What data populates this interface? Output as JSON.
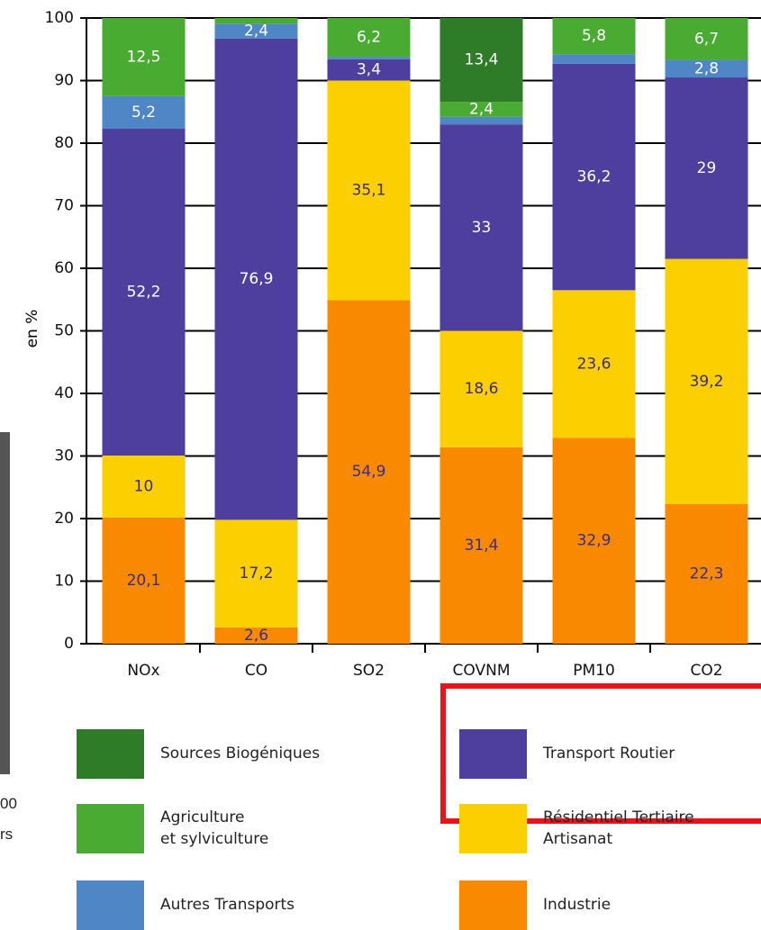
{
  "chart_data": {
    "type": "stacked-bar",
    "y_label": "en %",
    "categories": [
      "NOx",
      "CO",
      "SO2",
      "COVNM",
      "PM10",
      "CO2"
    ],
    "ylim": [
      0,
      100
    ],
    "yticks": [
      0,
      10,
      20,
      30,
      40,
      50,
      60,
      70,
      80,
      90,
      100
    ],
    "grid": true,
    "series": [
      {
        "name": "Industrie",
        "color": "#f98a00",
        "label_color": "#3b2a8c",
        "values": [
          20.1,
          2.6,
          54.9,
          31.4,
          32.9,
          22.3
        ],
        "value_labels": [
          "20,1",
          "2,6",
          "54,9",
          "31,4",
          "32,9",
          "22,3"
        ]
      },
      {
        "name": "Résidentiel Tertiaire\nArtisanat",
        "color": "#fccf00",
        "label_color": "#3b2a8c",
        "values": [
          10,
          17.2,
          35.1,
          18.6,
          23.6,
          39.2
        ],
        "value_labels": [
          "10",
          "17,2",
          "35,1",
          "18,6",
          "23,6",
          "39,2"
        ]
      },
      {
        "name": "Transport Routier",
        "color": "#4e3f9e",
        "label_color": "#ffffff",
        "values": [
          52.2,
          76.9,
          3.4,
          33,
          36.2,
          29
        ],
        "value_labels": [
          "52,2",
          "76,9",
          "3,4",
          "33",
          "36,2",
          "29"
        ]
      },
      {
        "name": "Autres Transports",
        "color": "#4f86c6",
        "label_color": "#ffffff",
        "values": [
          5.2,
          2.4,
          0.4,
          1.2,
          1.5,
          2.8
        ],
        "value_labels": [
          "5,2",
          "2,4",
          null,
          null,
          null,
          "2,8"
        ]
      },
      {
        "name": "Agriculture\net sylviculture",
        "color": "#4aab33",
        "label_color": "#ffffff",
        "values": [
          12.5,
          0.9,
          6.2,
          2.4,
          5.8,
          6.7
        ],
        "value_labels": [
          "12,5",
          null,
          "6,2",
          "2,4",
          "5,8",
          "6,7"
        ]
      },
      {
        "name": "Sources Biogéniques",
        "color": "#2e7c28",
        "label_color": "#ffffff",
        "values": [
          null,
          null,
          null,
          13.4,
          null,
          null
        ],
        "value_labels": [
          null,
          null,
          null,
          "13,4",
          null,
          null
        ]
      }
    ]
  },
  "fragments": [
    "00",
    "rs"
  ]
}
